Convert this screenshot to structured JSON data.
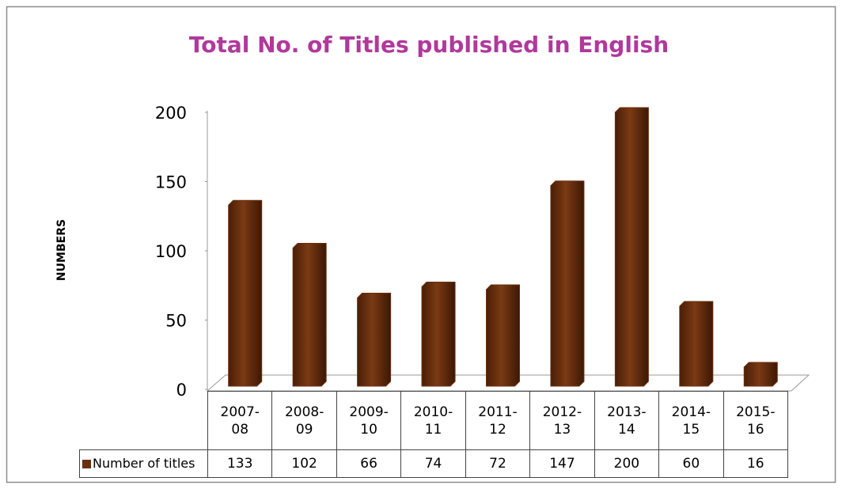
{
  "chart_data": {
    "type": "bar",
    "title": "Total No. of Titles published in English",
    "ylabel": "NUMBERS",
    "categories": [
      "2007-08",
      "2008-09",
      "2009-10",
      "2010-11",
      "2011-12",
      "2012-13",
      "2013-14",
      "2014-15",
      "2015-16"
    ],
    "series": [
      {
        "name": "Number of titles",
        "color": "#6b2f10",
        "values": [
          133,
          102,
          66,
          74,
          72,
          147,
          200,
          60,
          16
        ]
      }
    ],
    "ylim": [
      0,
      200
    ],
    "yticks": [
      0,
      50,
      100,
      150,
      200
    ],
    "grid": false,
    "title_color": "#b0399c"
  }
}
